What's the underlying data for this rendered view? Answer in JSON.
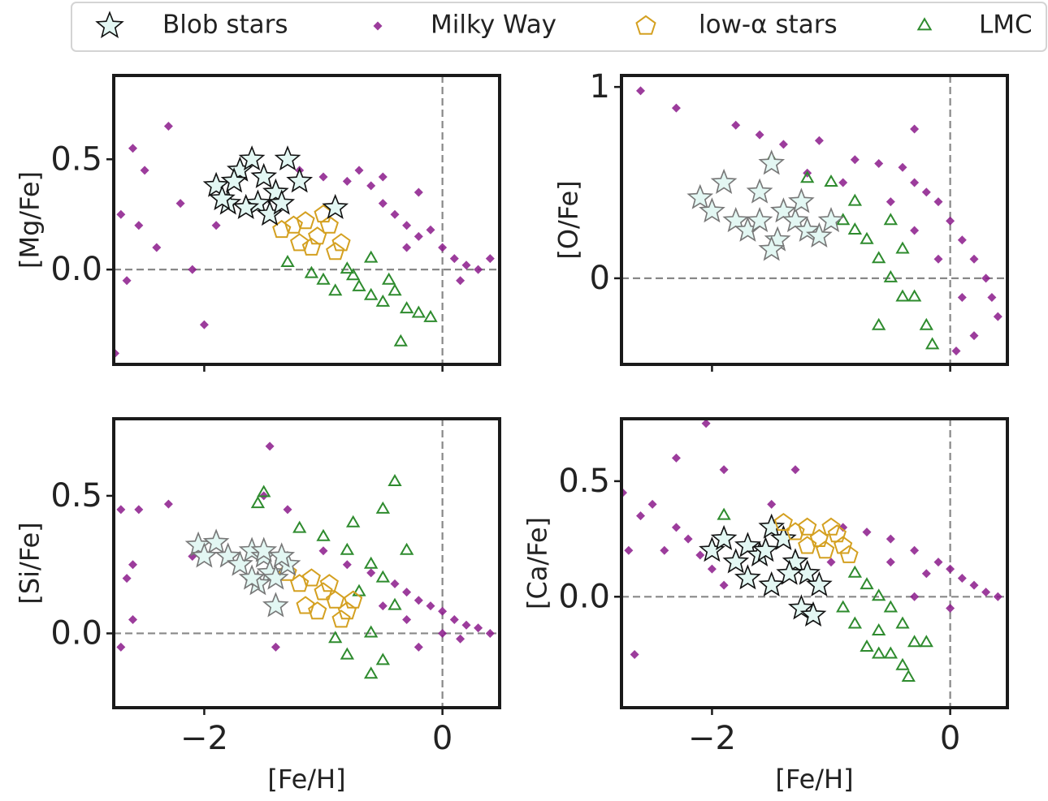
{
  "legend": [
    {
      "name": "Blob stars",
      "marker": "star",
      "color": "#e3f7f3",
      "edgecolor": "#111111"
    },
    {
      "name": "Milky Way",
      "marker": "diamond",
      "color": "#8b1a8b"
    },
    {
      "name": "low-α stars",
      "marker": "pentagon",
      "color": "#d4a020"
    },
    {
      "name": "LMC",
      "marker": "triangle",
      "color": "#2e8b2e"
    }
  ],
  "chart_data": [
    {
      "type": "scatter",
      "ylabel": "[Mg/Fe]",
      "xlim": [
        -2.76,
        0.48
      ],
      "ylim": [
        -0.43,
        0.88
      ],
      "xticks": [
        -2,
        0
      ],
      "xticklabels": false,
      "yticks": [
        {
          "value": 0,
          "label": "0.0"
        },
        {
          "value": 0.5,
          "label": "0.5"
        }
      ],
      "hline": 0,
      "vline": 0,
      "series": [
        {
          "marker": "diamond",
          "color": "#8b1a8b",
          "x": [
            -2.7,
            -2.6,
            -2.5,
            -2.4,
            -2.3,
            -2.2,
            -2.1,
            -2.0,
            -1.9,
            -2.65,
            -2.55,
            -2.75,
            -1.2,
            -1.0,
            -0.8,
            -0.6,
            -0.5,
            -0.4,
            -0.3,
            -0.2,
            -0.1,
            0.0,
            0.1,
            0.2,
            0.3,
            0.4,
            -0.7,
            -0.5,
            -0.3,
            0.15,
            -0.9,
            -0.2
          ],
          "y": [
            0.25,
            0.55,
            0.45,
            0.1,
            0.65,
            0.3,
            0.0,
            -0.25,
            0.2,
            -0.05,
            0.2,
            -0.38,
            0.45,
            0.42,
            0.4,
            0.38,
            0.3,
            0.25,
            0.2,
            0.15,
            0.18,
            0.1,
            0.05,
            0.02,
            0.0,
            0.05,
            0.45,
            0.42,
            0.1,
            -0.05,
            0.3,
            0.35
          ]
        },
        {
          "marker": "triangle",
          "color": "#2e8b2e",
          "x": [
            -1.3,
            -1.0,
            -0.9,
            -0.8,
            -0.7,
            -0.6,
            -0.5,
            -0.4,
            -0.3,
            -0.2,
            -0.1,
            -0.35,
            -0.6,
            -0.75,
            -0.45,
            -1.1
          ],
          "y": [
            0.03,
            -0.05,
            -0.1,
            0.0,
            -0.08,
            -0.12,
            -0.15,
            -0.1,
            -0.18,
            -0.2,
            -0.22,
            -0.33,
            0.05,
            -0.03,
            -0.05,
            -0.02
          ]
        },
        {
          "marker": "pentagon",
          "color": "#d4a020",
          "x": [
            -1.35,
            -1.25,
            -1.15,
            -1.05,
            -0.95,
            -0.85,
            -1.2,
            -1.0,
            -0.9,
            -1.1
          ],
          "y": [
            0.18,
            0.2,
            0.22,
            0.15,
            0.2,
            0.12,
            0.12,
            0.25,
            0.08,
            0.1
          ]
        },
        {
          "marker": "star",
          "color": "#e3f7f3",
          "edgecolor": "#111111",
          "x": [
            -1.9,
            -1.8,
            -1.7,
            -1.6,
            -1.5,
            -1.4,
            -1.3,
            -1.55,
            -1.65,
            -1.45,
            -1.75,
            -1.2,
            -0.9,
            -1.35,
            -1.85
          ],
          "y": [
            0.38,
            0.3,
            0.45,
            0.5,
            0.42,
            0.35,
            0.5,
            0.3,
            0.28,
            0.25,
            0.4,
            0.4,
            0.28,
            0.3,
            0.32
          ]
        }
      ]
    },
    {
      "type": "scatter",
      "ylabel": "[O/Fe]",
      "xlim": [
        -2.76,
        0.48
      ],
      "ylim": [
        -0.45,
        1.06
      ],
      "xticks": [
        -2,
        0
      ],
      "xticklabels": false,
      "yticks": [
        0,
        1
      ],
      "hline": 0,
      "vline": 0,
      "series": [
        {
          "marker": "diamond",
          "color": "#8b1a8b",
          "x": [
            -2.6,
            -2.3,
            -1.8,
            -1.6,
            -1.4,
            -1.1,
            -0.8,
            -0.6,
            -0.4,
            -0.3,
            -0.2,
            -0.1,
            0.0,
            0.1,
            0.2,
            0.3,
            0.35,
            0.4,
            -0.5,
            -0.3,
            -0.1,
            0.1,
            0.2,
            -0.3,
            -0.9,
            -1.2,
            0.05
          ],
          "y": [
            0.98,
            0.89,
            0.8,
            0.75,
            0.7,
            0.72,
            0.62,
            0.6,
            0.58,
            0.5,
            0.45,
            0.4,
            0.3,
            0.2,
            0.1,
            0.0,
            -0.1,
            -0.2,
            0.4,
            0.25,
            0.1,
            -0.1,
            -0.3,
            0.78,
            0.5,
            0.55,
            -0.38
          ]
        },
        {
          "marker": "triangle",
          "color": "#2e8b2e",
          "x": [
            -1.5,
            -1.2,
            -1.0,
            -0.9,
            -0.8,
            -0.7,
            -0.6,
            -0.5,
            -0.4,
            -0.3,
            -0.6,
            -0.2,
            -0.15,
            -0.8,
            -0.5,
            -0.4
          ],
          "y": [
            0.62,
            0.52,
            0.5,
            0.3,
            0.25,
            0.2,
            0.1,
            0.0,
            -0.1,
            -0.1,
            -0.25,
            -0.25,
            -0.35,
            0.4,
            0.3,
            0.15
          ]
        },
        {
          "marker": "star",
          "color": "#e3f7f3",
          "edgecolor": "#777777",
          "x": [
            -2.1,
            -2.0,
            -1.9,
            -1.8,
            -1.7,
            -1.6,
            -1.5,
            -1.45,
            -1.4,
            -1.3,
            -1.2,
            -1.1,
            -1.0,
            -1.5,
            -1.25,
            -1.6
          ],
          "y": [
            0.42,
            0.35,
            0.5,
            0.3,
            0.25,
            0.45,
            0.6,
            0.2,
            0.35,
            0.3,
            0.25,
            0.22,
            0.3,
            0.15,
            0.4,
            0.3
          ]
        }
      ]
    },
    {
      "type": "scatter",
      "ylabel": "[Si/Fe]",
      "xlabel": "[Fe/H]",
      "xlim": [
        -2.76,
        0.48
      ],
      "ylim": [
        -0.27,
        0.78
      ],
      "xticks": [
        {
          "value": -2,
          "label": "−2"
        },
        0
      ],
      "xticklabels": true,
      "yticks": [
        {
          "value": 0,
          "label": "0.0"
        },
        {
          "value": 0.5,
          "label": "0.5"
        }
      ],
      "hline": 0,
      "vline": 0,
      "series": [
        {
          "marker": "diamond",
          "color": "#8b1a8b",
          "x": [
            -2.7,
            -2.6,
            -2.55,
            -2.3,
            -2.7,
            -2.6,
            -2.65,
            -1.45,
            -1.5,
            -1.3,
            -1.4,
            -1.0,
            -0.8,
            -0.6,
            -0.4,
            -0.3,
            -0.2,
            -0.1,
            0.0,
            0.1,
            0.2,
            0.3,
            0.4,
            -0.5,
            -0.3,
            0.0,
            0.15,
            -0.2,
            -2.1
          ],
          "y": [
            0.45,
            0.25,
            0.45,
            0.47,
            -0.05,
            0.05,
            0.2,
            0.68,
            0.5,
            0.45,
            -0.05,
            0.3,
            0.25,
            0.22,
            0.18,
            0.15,
            0.12,
            0.1,
            0.08,
            0.05,
            0.03,
            0.02,
            0.0,
            0.1,
            0.05,
            0.0,
            -0.02,
            -0.05,
            0.28
          ]
        },
        {
          "marker": "triangle",
          "color": "#2e8b2e",
          "x": [
            -1.5,
            -1.55,
            -1.2,
            -0.75,
            -0.4,
            -0.5,
            -0.8,
            -0.6,
            -0.5,
            -0.7,
            -0.4,
            -0.6,
            -0.8,
            -0.6,
            -0.5,
            -0.9,
            -0.3,
            -1.0
          ],
          "y": [
            0.51,
            0.47,
            0.38,
            0.4,
            0.55,
            0.45,
            0.3,
            0.25,
            0.2,
            0.15,
            0.1,
            0.0,
            -0.08,
            -0.15,
            -0.1,
            -0.02,
            0.3,
            0.35
          ]
        },
        {
          "marker": "pentagon",
          "color": "#d4a020",
          "x": [
            -1.3,
            -1.2,
            -1.1,
            -1.0,
            -0.9,
            -0.8,
            -0.85,
            -1.15,
            -1.05,
            -0.95,
            -0.75
          ],
          "y": [
            0.22,
            0.18,
            0.2,
            0.15,
            0.12,
            0.08,
            0.05,
            0.1,
            0.08,
            0.18,
            0.12
          ]
        },
        {
          "marker": "star",
          "color": "#e3f7f3",
          "edgecolor": "#777777",
          "x": [
            -2.05,
            -1.9,
            -1.8,
            -1.7,
            -1.6,
            -1.5,
            -1.45,
            -1.4,
            -1.55,
            -1.3,
            -1.35,
            -1.6,
            -1.4,
            -1.5,
            -2.0
          ],
          "y": [
            0.32,
            0.33,
            0.28,
            0.25,
            0.3,
            0.28,
            0.22,
            0.2,
            0.18,
            0.25,
            0.28,
            0.2,
            0.1,
            0.3,
            0.28
          ]
        }
      ]
    },
    {
      "type": "scatter",
      "ylabel": "[Ca/Fe]",
      "xlabel": "[Fe/H]",
      "xlim": [
        -2.76,
        0.48
      ],
      "ylim": [
        -0.48,
        0.77
      ],
      "xticks": [
        {
          "value": -2,
          "label": "−2"
        },
        0
      ],
      "xticklabels": true,
      "yticks": [
        {
          "value": 0,
          "label": "0.0"
        },
        {
          "value": 0.5,
          "label": "0.5"
        }
      ],
      "hline": 0,
      "vline": 0,
      "series": [
        {
          "marker": "diamond",
          "color": "#8b1a8b",
          "x": [
            -2.75,
            -2.6,
            -2.7,
            -2.65,
            -2.5,
            -2.4,
            -2.3,
            -2.2,
            -2.1,
            -2.0,
            -1.9,
            -2.05,
            -2.3,
            -1.9,
            -1.5,
            -1.3,
            -0.9,
            -0.7,
            -0.5,
            -0.3,
            -0.1,
            0.0,
            0.1,
            0.2,
            0.3,
            0.4,
            -0.5,
            -0.2,
            0.0,
            -0.3,
            -1.0
          ],
          "y": [
            0.45,
            0.35,
            0.2,
            -0.25,
            0.4,
            0.2,
            0.3,
            0.25,
            0.18,
            0.12,
            0.05,
            0.75,
            0.6,
            0.55,
            0.4,
            0.55,
            0.3,
            0.28,
            0.25,
            0.2,
            0.15,
            0.12,
            0.08,
            0.05,
            0.02,
            0.0,
            0.15,
            0.1,
            -0.05,
            0.0,
            0.15
          ]
        },
        {
          "marker": "triangle",
          "color": "#2e8b2e",
          "x": [
            -1.9,
            -0.8,
            -0.7,
            -0.6,
            -0.5,
            -0.4,
            -0.6,
            -0.8,
            -0.3,
            -0.5,
            -0.7,
            -0.4,
            -0.2,
            -0.35,
            -0.9,
            -0.6
          ],
          "y": [
            0.35,
            0.1,
            0.05,
            0.0,
            -0.05,
            -0.12,
            -0.15,
            -0.12,
            -0.2,
            -0.25,
            -0.22,
            -0.3,
            -0.2,
            -0.35,
            -0.05,
            -0.25
          ]
        },
        {
          "marker": "star",
          "color": "#e3f7f3",
          "edgecolor": "#111111",
          "x": [
            -2.0,
            -1.9,
            -1.8,
            -1.7,
            -1.6,
            -1.5,
            -1.4,
            -1.3,
            -1.2,
            -1.5,
            -1.35,
            -1.7,
            -1.1,
            -1.25,
            -1.15,
            -1.55
          ],
          "y": [
            0.2,
            0.25,
            0.15,
            0.22,
            0.18,
            0.3,
            0.25,
            0.15,
            0.1,
            0.05,
            0.1,
            0.08,
            0.05,
            -0.05,
            -0.08,
            0.2
          ]
        },
        {
          "marker": "pentagon",
          "color": "#d4a020",
          "x": [
            -1.4,
            -1.3,
            -1.2,
            -1.1,
            -1.0,
            -0.9,
            -0.85,
            -1.05,
            -0.95,
            -1.2
          ],
          "y": [
            0.32,
            0.28,
            0.3,
            0.25,
            0.3,
            0.22,
            0.18,
            0.2,
            0.27,
            0.22
          ]
        }
      ]
    }
  ]
}
